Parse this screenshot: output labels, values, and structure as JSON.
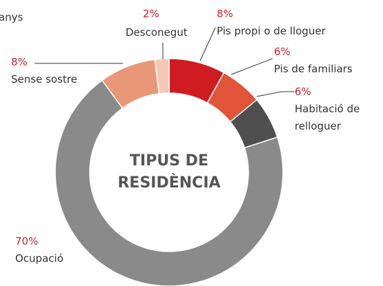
{
  "chart_data": {
    "type": "pie",
    "donut": true,
    "title": "TIPUS DE RESIDÈNCIA",
    "annotations": [
      "anys"
    ],
    "categories": [
      "Pis propi o de lloguer",
      "Pis de familiars",
      "Habitació de relloguer",
      "Ocupació",
      "Sense sostre",
      "Desconegut"
    ],
    "values": [
      8,
      6,
      6,
      70,
      8,
      2
    ],
    "value_labels": [
      "8%",
      "6%",
      "6%",
      "70%",
      "8%",
      "2%"
    ],
    "colors": [
      "#cf1c20",
      "#e0553a",
      "#4f4f4f",
      "#8a8a8a",
      "#e89878",
      "#f3c9b5"
    ]
  }
}
